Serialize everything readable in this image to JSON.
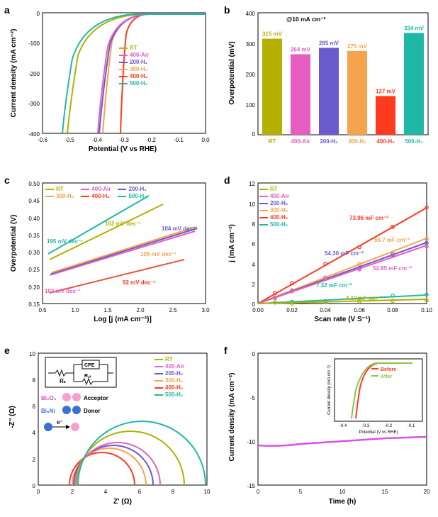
{
  "colors": {
    "RT": "#b3b000",
    "400Air": "#e65fc0",
    "200H2": "#6a5acd",
    "300H2": "#f5a34c",
    "400H2": "#ff3b1f",
    "500H2": "#1fb8a6",
    "before": "#ff3b1f",
    "after": "#8cc63f",
    "stability": "#d94fe8"
  },
  "series_labels": {
    "RT": "RT",
    "400Air": "400-Air",
    "200H2": "200-H₂",
    "300H2": "300-H₂",
    "400H2": "400-H₂",
    "500H2": "500-H₂"
  },
  "panel_a": {
    "type": "line",
    "xlabel": "Potential (V vs RHE)",
    "ylabel": "Current density (mA cm⁻²)",
    "xlim": [
      -0.6,
      0.0
    ],
    "xtick_step": 0.1,
    "ylim": [
      -400,
      0
    ],
    "ytick_step": 100,
    "background_color": "#ffffff"
  },
  "panel_b": {
    "type": "bar",
    "note": "@10 mA cm⁻²",
    "xlabel": "",
    "ylabel": "Overpotential (mV)",
    "ylim": [
      0,
      400
    ],
    "ytick_step": 100,
    "categories": [
      "RT",
      "400-Air",
      "200-H₂",
      "300-H₂",
      "400-H₂",
      "500-H₂"
    ],
    "values": [
      315,
      264,
      285,
      275,
      127,
      334
    ],
    "value_labels": [
      "315 mV",
      "264 mV",
      "285 mV",
      "275 mV",
      "127 mV",
      "334 mV"
    ],
    "bar_colors": [
      "#b3b000",
      "#e65fc0",
      "#6a5acd",
      "#f5a34c",
      "#ff3b1f",
      "#1fb8a6"
    ],
    "bar_width": 0.7
  },
  "panel_c": {
    "type": "line",
    "xlabel": "Log [j (mA cm⁻²)]",
    "ylabel": "Overpotential (V)",
    "xlim": [
      0.5,
      3.0
    ],
    "xtick_step": 0.5,
    "ylim": [
      0.15,
      0.5
    ],
    "ytick_step": 0.05,
    "annotations": {
      "RT": "162 mV dec⁻¹",
      "400Air": "103 mV dec⁻¹",
      "200H2": "104 mV dec⁻¹",
      "300H2": "105 mV dec⁻¹",
      "400H2": "92 mV dec⁻¹",
      "500H2": "195 mV dec⁻¹"
    }
  },
  "panel_d": {
    "type": "scatter",
    "xlabel": "Scan rate (V S⁻¹)",
    "ylabel": "j (mA cm⁻²)",
    "xlim": [
      0.0,
      0.1
    ],
    "xtick_step": 0.02,
    "ylim": [
      0,
      12
    ],
    "ytick_step": 2,
    "annotations": {
      "RT": "4.10 mF cm⁻²",
      "400Air": "52.85 mF cm⁻²",
      "200H2": "54.30 mF cm⁻²",
      "300H2": "56.7 mF cm⁻²",
      "400H2": "73.96 mF cm⁻²",
      "500H2": "7.32 mF cm⁻²"
    }
  },
  "panel_e": {
    "type": "line",
    "xlabel": "Z' (Ω)",
    "ylabel": "-Z'' (Ω)",
    "xlim": [
      0,
      10
    ],
    "xtick_step": 2,
    "ylim": [
      0,
      10
    ],
    "ytick_step": 2,
    "circuit": {
      "Rs": "Rₛ",
      "Rct": "R꜀ₜ",
      "CPE": "CPE"
    },
    "annot_labels": {
      "Bi2O3": "Bi₂O₃",
      "Bi6Ni": "Bi₆Ni",
      "Acceptor": "Acceptor",
      "Donor": "Donor",
      "e": "e⁻"
    }
  },
  "panel_f": {
    "type": "line",
    "xlabel": "Time (h)",
    "ylabel": "Current density (mA cm⁻²)",
    "xlim": [
      0,
      20
    ],
    "xtick_step": 5,
    "ylim": [
      -15,
      0
    ],
    "ytick_step": 5,
    "stability_value": -10,
    "inset": {
      "xlabel": "Potential (V vs RHE)",
      "ylabel": "Current density (mA cm⁻²)",
      "before": "Before",
      "after": "After",
      "xlim": [
        -0.4,
        0.0
      ]
    }
  }
}
